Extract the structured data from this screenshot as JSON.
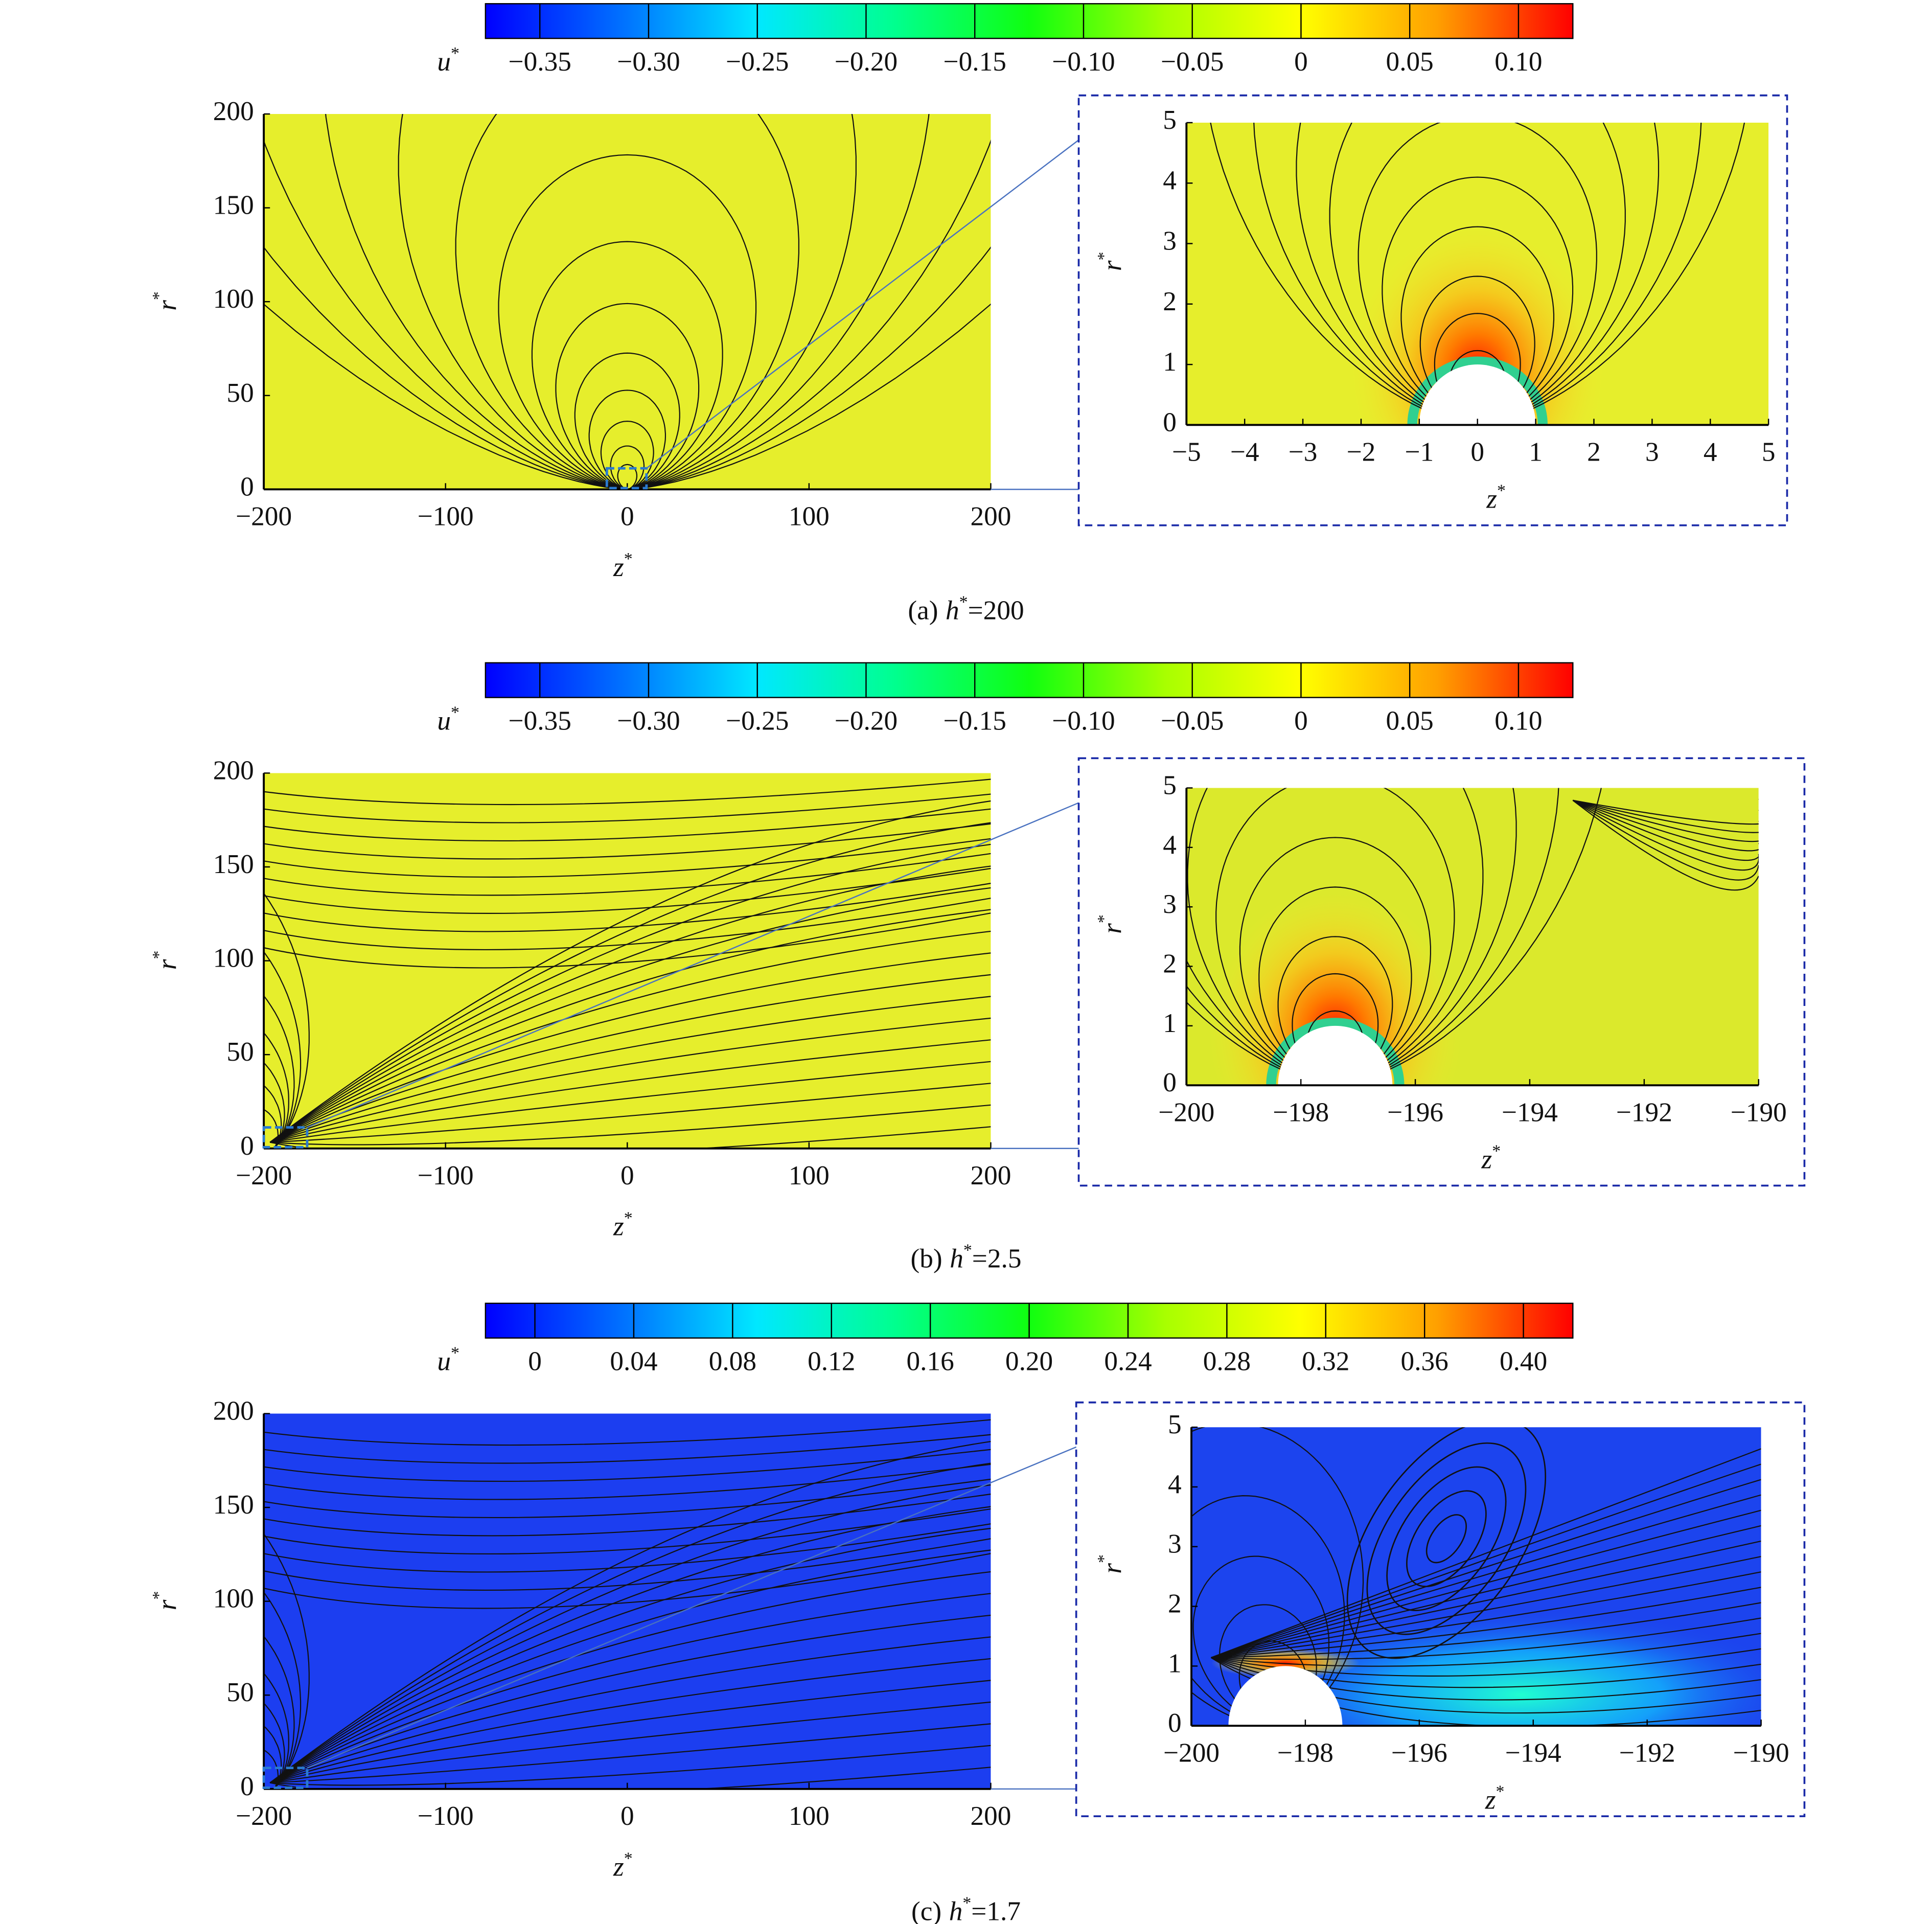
{
  "chart_data": [
    {
      "type": "contour",
      "colorbar": {
        "label": {
          "text": "u",
          "sup": "*"
        },
        "lim": [
          -0.375,
          0.125
        ],
        "ticks": [
          {
            "value": -0.35,
            "label": "−0.35"
          },
          {
            "value": -0.3,
            "label": "−0.30"
          },
          {
            "value": -0.25,
            "label": "−0.25"
          },
          {
            "value": -0.2,
            "label": "−0.20"
          },
          {
            "value": -0.15,
            "label": "−0.15"
          },
          {
            "value": -0.1,
            "label": "−0.10"
          },
          {
            "value": -0.05,
            "label": "−0.05"
          },
          0,
          0.05,
          {
            "value": 0.1,
            "label": "0.10"
          }
        ],
        "colormap": [
          "#0000ff",
          "#0070ff",
          "#00e8ff",
          "#00ff90",
          "#10ff10",
          "#a8ff00",
          "#ffff00",
          "#ffa000",
          "#ff0000"
        ]
      },
      "main": {
        "xlabel": {
          "text": "z",
          "sup": "*"
        },
        "ylabel": {
          "text": "r",
          "sup": "*"
        },
        "color": "#e6ee2c",
        "xlim": [
          -200,
          200
        ],
        "ylim": [
          0,
          200
        ],
        "xticks": [
          {
            "value": -200,
            "label": "−200"
          },
          {
            "value": -100,
            "label": "−100"
          },
          0,
          100,
          200
        ],
        "yticks": [
          0,
          50,
          100,
          150,
          200
        ]
      },
      "inset": {
        "xlabel": {
          "text": "z",
          "sup": "*"
        },
        "ylabel": {
          "text": "r",
          "sup": "*"
        },
        "color": "#e6ee2c",
        "xlim": [
          -5,
          5
        ],
        "ylim": [
          0,
          5
        ],
        "xticks": [
          {
            "value": -5,
            "label": "−5"
          },
          {
            "value": -4,
            "label": "−4"
          },
          {
            "value": -3,
            "label": "−3"
          },
          {
            "value": -2,
            "label": "−2"
          },
          {
            "value": -1,
            "label": "−1"
          },
          0,
          1,
          2,
          3,
          4,
          5
        ],
        "yticks": [
          0,
          1,
          2,
          3,
          4,
          5
        ]
      },
      "caption": {
        "prefix": "(a)",
        "var": "h",
        "sup": "*",
        "suffix": "=200"
      }
    },
    {
      "type": "contour",
      "colorbar": {
        "label": {
          "text": "u",
          "sup": "*"
        },
        "lim": [
          -0.375,
          0.125
        ],
        "ticks": [
          {
            "value": -0.35,
            "label": "−0.35"
          },
          {
            "value": -0.3,
            "label": "−0.30"
          },
          {
            "value": -0.25,
            "label": "−0.25"
          },
          {
            "value": -0.2,
            "label": "−0.20"
          },
          {
            "value": -0.15,
            "label": "−0.15"
          },
          {
            "value": -0.1,
            "label": "−0.10"
          },
          {
            "value": -0.05,
            "label": "−0.05"
          },
          0,
          0.05,
          {
            "value": 0.1,
            "label": "0.10"
          }
        ],
        "colormap": [
          "#0000ff",
          "#0070ff",
          "#00e8ff",
          "#00ff90",
          "#10ff10",
          "#a8ff00",
          "#ffff00",
          "#ffa000",
          "#ff0000"
        ]
      },
      "main": {
        "xlabel": {
          "text": "z",
          "sup": "*"
        },
        "ylabel": {
          "text": "r",
          "sup": "*"
        },
        "color": "#e6ee2c",
        "xlim": [
          -200,
          200
        ],
        "ylim": [
          0,
          200
        ],
        "xticks": [
          {
            "value": -200,
            "label": "−200"
          },
          {
            "value": -100,
            "label": "−100"
          },
          0,
          100,
          200
        ],
        "yticks": [
          0,
          50,
          100,
          150,
          200
        ]
      },
      "inset": {
        "xlabel": {
          "text": "z",
          "sup": "*"
        },
        "ylabel": {
          "text": "r",
          "sup": "*"
        },
        "color": "#dbe92c",
        "xlim": [
          -200,
          -190
        ],
        "ylim": [
          0,
          5
        ],
        "xticks": [
          {
            "value": -200,
            "label": "−200"
          },
          {
            "value": -198,
            "label": "−198"
          },
          {
            "value": -196,
            "label": "−196"
          },
          {
            "value": -194,
            "label": "−194"
          },
          {
            "value": -192,
            "label": "−192"
          },
          {
            "value": -190,
            "label": "−190"
          }
        ],
        "yticks": [
          0,
          1,
          2,
          3,
          4,
          5
        ]
      },
      "caption": {
        "prefix": "(b)",
        "var": "h",
        "sup": "*",
        "suffix": "=2.5"
      }
    },
    {
      "type": "contour",
      "colorbar": {
        "label": {
          "text": "u",
          "sup": "*"
        },
        "lim": [
          -0.02,
          0.42
        ],
        "ticks": [
          0,
          0.04,
          0.08,
          0.12,
          0.16,
          {
            "value": 0.2,
            "label": "0.20"
          },
          0.24,
          0.28,
          0.32,
          0.36,
          {
            "value": 0.4,
            "label": "0.40"
          }
        ],
        "colormap": [
          "#0000ff",
          "#0070ff",
          "#00e8ff",
          "#00ff90",
          "#10ff10",
          "#a8ff00",
          "#ffff00",
          "#ffa000",
          "#ff0000"
        ]
      },
      "main": {
        "xlabel": {
          "text": "z",
          "sup": "*"
        },
        "ylabel": {
          "text": "r",
          "sup": "*"
        },
        "color": "#1c3ef0",
        "xlim": [
          -200,
          200
        ],
        "ylim": [
          0,
          200
        ],
        "xticks": [
          {
            "value": -200,
            "label": "−200"
          },
          {
            "value": -100,
            "label": "−100"
          },
          0,
          100,
          200
        ],
        "yticks": [
          0,
          50,
          100,
          150,
          200
        ]
      },
      "inset": {
        "xlabel": {
          "text": "z",
          "sup": "*"
        },
        "ylabel": {
          "text": "r",
          "sup": "*"
        },
        "color": "#1c44ee",
        "xlim": [
          -200,
          -190
        ],
        "ylim": [
          0,
          5
        ],
        "xticks": [
          {
            "value": -200,
            "label": "−200"
          },
          {
            "value": -198,
            "label": "−198"
          },
          {
            "value": -196,
            "label": "−196"
          },
          {
            "value": -194,
            "label": "−194"
          },
          {
            "value": -192,
            "label": "−192"
          },
          {
            "value": -190,
            "label": "−190"
          }
        ],
        "yticks": [
          0,
          1,
          2,
          3,
          4,
          5
        ]
      },
      "caption": {
        "prefix": "(c)",
        "var": "h",
        "sup": "*",
        "suffix": "=1.7"
      }
    }
  ]
}
